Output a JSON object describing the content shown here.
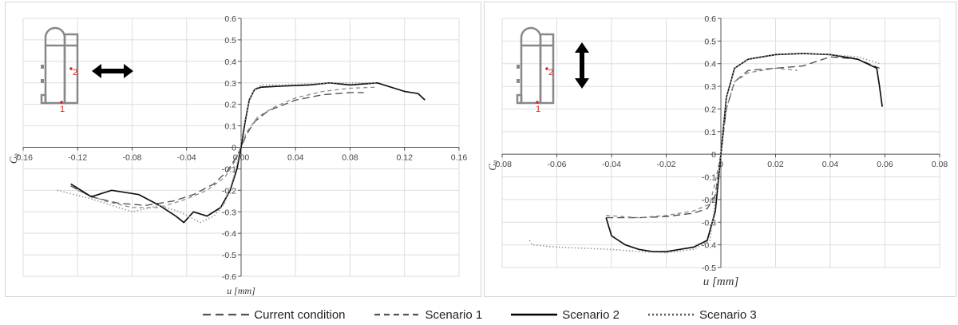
{
  "chart_data": [
    {
      "type": "line",
      "xlabel": "u  [mm]",
      "ylabel": "C₀",
      "xlim": [
        -0.16,
        0.16
      ],
      "ylim": [
        -0.6,
        0.6
      ],
      "xticks": [
        -0.16,
        -0.12,
        -0.08,
        -0.04,
        0.0,
        0.04,
        0.08,
        0.12,
        0.16
      ],
      "xtick_labels": [
        "-0.16",
        "-0.12",
        "-0.08",
        "-0.04",
        "0.00",
        "0.04",
        "0.08",
        "0.12",
        "0.16"
      ],
      "yticks": [
        -0.6,
        -0.5,
        -0.4,
        -0.3,
        -0.2,
        -0.1,
        0,
        0.1,
        0.2,
        0.3,
        0.4,
        0.5,
        0.6
      ],
      "ytick_labels": [
        "-0.6",
        "-0.5",
        "-0.4",
        "-0.3",
        "-0.2",
        "-0.1",
        "0",
        "0.1",
        "0.2",
        "0.3",
        "0.4",
        "0.5",
        "0.6"
      ],
      "grid": true,
      "inset": {
        "labels": [
          "1",
          "2"
        ],
        "arrow": "horizontal"
      },
      "series": [
        {
          "name": "Current condition",
          "style": "longdash",
          "color": "#555555",
          "x": [
            -0.125,
            -0.11,
            -0.09,
            -0.07,
            -0.05,
            -0.035,
            -0.02,
            -0.01,
            -0.004,
            0,
            0.004,
            0.01,
            0.02,
            0.04,
            0.06,
            0.08,
            0.09
          ],
          "y": [
            -0.18,
            -0.23,
            -0.26,
            -0.27,
            -0.25,
            -0.22,
            -0.17,
            -0.11,
            -0.05,
            0,
            0.06,
            0.12,
            0.17,
            0.22,
            0.245,
            0.255,
            0.255
          ]
        },
        {
          "name": "Scenario 1",
          "style": "dash",
          "color": "#8a8a8a",
          "x": [
            -0.12,
            -0.1,
            -0.08,
            -0.06,
            -0.04,
            -0.025,
            -0.012,
            -0.004,
            0,
            0.004,
            0.012,
            0.025,
            0.04,
            0.06,
            0.08,
            0.1
          ],
          "y": [
            -0.2,
            -0.25,
            -0.28,
            -0.28,
            -0.24,
            -0.2,
            -0.14,
            -0.06,
            0,
            0.07,
            0.14,
            0.19,
            0.23,
            0.26,
            0.275,
            0.28
          ]
        },
        {
          "name": "Scenario 2",
          "style": "solid",
          "color": "#111111",
          "x": [
            -0.125,
            -0.11,
            -0.095,
            -0.075,
            -0.06,
            -0.048,
            -0.042,
            -0.035,
            -0.025,
            -0.015,
            -0.008,
            -0.003,
            0,
            0.003,
            0.006,
            0.01,
            0.015,
            0.03,
            0.05,
            0.065,
            0.08,
            0.1,
            0.12,
            0.13,
            0.135
          ],
          "y": [
            -0.17,
            -0.23,
            -0.2,
            -0.22,
            -0.27,
            -0.32,
            -0.35,
            -0.3,
            -0.32,
            -0.28,
            -0.2,
            -0.1,
            0,
            0.12,
            0.22,
            0.27,
            0.28,
            0.285,
            0.29,
            0.3,
            0.29,
            0.3,
            0.26,
            0.25,
            0.22
          ]
        },
        {
          "name": "Scenario 3",
          "style": "dotted",
          "color": "#9a9a9a",
          "x": [
            -0.135,
            -0.11,
            -0.09,
            -0.08,
            -0.06,
            -0.045,
            -0.03,
            -0.02,
            -0.012,
            -0.006,
            -0.002,
            0.002,
            0.006,
            0.01,
            0.015,
            0.03,
            0.05,
            0.07,
            0.09,
            0.1
          ],
          "y": [
            -0.2,
            -0.24,
            -0.28,
            -0.3,
            -0.27,
            -0.3,
            -0.35,
            -0.32,
            -0.26,
            -0.15,
            -0.05,
            0.1,
            0.22,
            0.27,
            0.29,
            0.29,
            0.295,
            0.3,
            0.3,
            0.3
          ]
        }
      ]
    },
    {
      "type": "line",
      "xlabel": "u  [mm]",
      "ylabel": "C₀",
      "xlim": [
        -0.08,
        0.08
      ],
      "ylim": [
        -0.5,
        0.6
      ],
      "xticks": [
        -0.08,
        -0.06,
        -0.04,
        -0.02,
        0.0,
        0.02,
        0.04,
        0.06,
        0.08
      ],
      "xtick_labels": [
        "-0.08",
        "-0.06",
        "-0.04",
        "-0.02",
        "0",
        "0.02",
        "0.04",
        "0.06",
        "0.08"
      ],
      "yticks": [
        -0.5,
        -0.4,
        -0.3,
        -0.2,
        -0.1,
        0,
        0.1,
        0.2,
        0.3,
        0.4,
        0.5,
        0.6
      ],
      "ytick_labels": [
        "-0.5",
        "-0.4",
        "-0.3",
        "-0.2",
        "-0.1",
        "0",
        "0.1",
        "0.2",
        "0.3",
        "0.4",
        "0.5",
        "0.6"
      ],
      "grid": true,
      "inset": {
        "labels": [
          "1",
          "2"
        ],
        "arrow": "vertical"
      },
      "series": [
        {
          "name": "Current condition",
          "style": "longdash",
          "color": "#555555",
          "x": [
            -0.042,
            -0.03,
            -0.02,
            -0.01,
            -0.005,
            -0.002,
            0,
            0.002,
            0.005,
            0.01,
            0.02,
            0.03,
            0.04,
            0.05,
            0.058
          ],
          "y": [
            -0.28,
            -0.28,
            -0.275,
            -0.26,
            -0.24,
            -0.18,
            0,
            0.2,
            0.32,
            0.37,
            0.38,
            0.39,
            0.43,
            0.42,
            0.38
          ]
        },
        {
          "name": "Scenario 1",
          "style": "dash",
          "color": "#888888",
          "x": [
            -0.042,
            -0.03,
            -0.02,
            -0.01,
            -0.004,
            -0.002,
            0,
            0.002,
            0.005,
            0.01,
            0.02,
            0.028
          ],
          "y": [
            -0.27,
            -0.28,
            -0.27,
            -0.25,
            -0.22,
            -0.12,
            0,
            0.2,
            0.32,
            0.36,
            0.38,
            0.37
          ]
        },
        {
          "name": "Scenario 2",
          "style": "solid",
          "color": "#111111",
          "x": [
            -0.042,
            -0.04,
            -0.035,
            -0.03,
            -0.025,
            -0.02,
            -0.015,
            -0.01,
            -0.005,
            -0.002,
            0,
            0.002,
            0.005,
            0.01,
            0.02,
            0.03,
            0.04,
            0.05,
            0.057,
            0.058,
            0.059
          ],
          "y": [
            -0.28,
            -0.36,
            -0.4,
            -0.42,
            -0.43,
            -0.43,
            -0.42,
            -0.41,
            -0.38,
            -0.25,
            0,
            0.25,
            0.38,
            0.42,
            0.44,
            0.445,
            0.44,
            0.42,
            0.38,
            0.3,
            0.21
          ]
        },
        {
          "name": "Scenario 3",
          "style": "dotted",
          "color": "#9a9a9a",
          "x": [
            -0.07,
            -0.069,
            -0.06,
            -0.05,
            -0.04,
            -0.03,
            -0.02,
            -0.01,
            -0.004,
            -0.002,
            0,
            0.002,
            0.005,
            0.01,
            0.02,
            0.03,
            0.04,
            0.05,
            0.058
          ],
          "y": [
            -0.38,
            -0.4,
            -0.41,
            -0.415,
            -0.42,
            -0.43,
            -0.435,
            -0.42,
            -0.38,
            -0.2,
            0,
            0.25,
            0.38,
            0.42,
            0.44,
            0.445,
            0.44,
            0.43,
            0.4
          ]
        }
      ]
    }
  ],
  "legend": [
    {
      "label": "Current condition",
      "style": "longdash",
      "color": "#555555"
    },
    {
      "label": "Scenario 1",
      "style": "dash",
      "color": "#8a8a8a"
    },
    {
      "label": "Scenario 2",
      "style": "solid",
      "color": "#111111"
    },
    {
      "label": "Scenario 3",
      "style": "dotted",
      "color": "#9a9a9a"
    }
  ]
}
